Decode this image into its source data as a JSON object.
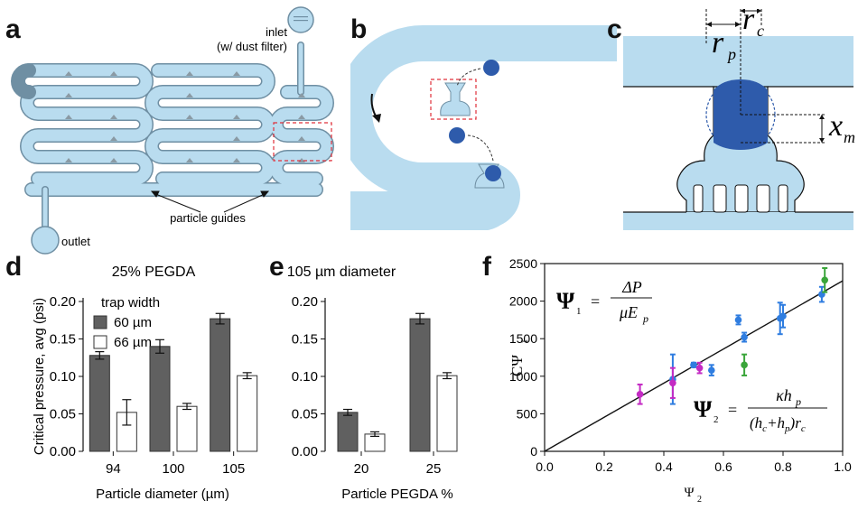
{
  "panels": {
    "a": {
      "label": "a",
      "inlet": "inlet",
      "inlet_note": "(w/ dust filter)",
      "outlet": "outlet",
      "guides": "particle guides"
    },
    "b": {
      "label": "b"
    },
    "c": {
      "label": "c",
      "rp": "r",
      "rp_sub": "p",
      "rc": "r",
      "rc_sub": "c",
      "xm": "x",
      "xm_sub": "m"
    },
    "d": {
      "label": "d"
    },
    "e": {
      "label": "e"
    },
    "f": {
      "label": "f",
      "eq1_lhs": "Ψ",
      "eq1_sub": "1",
      "eq1_num": "ΔP",
      "eq1_den": "μE",
      "eq1_den_sub": "p",
      "eq2_lhs": "Ψ",
      "eq2_sub": "2",
      "eq2_num": "κh",
      "eq2_num_sub": "p",
      "eq2_den": "(h",
      "eq2_den_c": "c",
      "eq2_den_mid": "+h",
      "eq2_den_p": "p",
      "eq2_den_end": ")r",
      "eq2_den_rc": "c",
      "equals": "="
    }
  },
  "colors": {
    "channel": "#b9dcef",
    "channel_stroke": "#6f8fa3",
    "particle": "#2e5bab",
    "bar_dark": "#606060",
    "blue_pts": "#2f7de0",
    "magenta_pts": "#c42bc4",
    "green_pts": "#3aa53a"
  },
  "chart_data": [
    {
      "type": "bar",
      "panel": "d",
      "title": "25% PEGDA",
      "xlabel": "Particle diameter (µm)",
      "ylabel": "Critical pressure, avg (psi)",
      "ylim": [
        0,
        0.2
      ],
      "yticks": [
        "0.00",
        "0.05",
        "0.10",
        "0.15",
        "0.20"
      ],
      "categories": [
        "94",
        "100",
        "105"
      ],
      "legend_title": "trap width",
      "legend": "top-left",
      "series": [
        {
          "name": "60 µm",
          "values": [
            0.128,
            0.14,
            0.177
          ],
          "errors": [
            0.005,
            0.009,
            0.007
          ]
        },
        {
          "name": "66 µm",
          "values": [
            0.052,
            0.06,
            0.101
          ],
          "errors": [
            0.017,
            0.004,
            0.004
          ]
        }
      ]
    },
    {
      "type": "bar",
      "panel": "e",
      "title": "105 µm diameter",
      "xlabel": "Particle PEGDA %",
      "ylabel": "",
      "ylim": [
        0,
        0.2
      ],
      "yticks": [
        "0.00",
        "0.05",
        "0.10",
        "0.15",
        "0.20"
      ],
      "categories": [
        "20",
        "25"
      ],
      "series": [
        {
          "name": "60 µm",
          "values": [
            0.052,
            0.177
          ],
          "errors": [
            0.004,
            0.007
          ]
        },
        {
          "name": "66 µm",
          "values": [
            0.023,
            0.101
          ],
          "errors": [
            0.003,
            0.004
          ]
        }
      ]
    },
    {
      "type": "scatter",
      "panel": "f",
      "xlabel": "Ψ",
      "xlabel_sub": "2",
      "ylabel": "CΨ",
      "ylabel_sub": "1",
      "xlim": [
        0,
        1
      ],
      "ylim": [
        0,
        2500
      ],
      "xticks": [
        "0.0",
        "0.2",
        "0.4",
        "0.6",
        "0.8",
        "1.0"
      ],
      "yticks": [
        "0",
        "500",
        "1000",
        "1500",
        "2000",
        "2500"
      ],
      "fit_line": [
        [
          0,
          0
        ],
        [
          1,
          2270
        ]
      ],
      "series": [
        {
          "color": "#2f7de0",
          "points": [
            [
              0.43,
              960,
              330
            ],
            [
              0.5,
              1150,
              30
            ],
            [
              0.56,
              1080,
              70
            ],
            [
              0.65,
              1750,
              60
            ],
            [
              0.67,
              1520,
              60
            ],
            [
              0.79,
              1770,
              210
            ],
            [
              0.8,
              1800,
              150
            ],
            [
              0.93,
              2090,
              100
            ]
          ]
        },
        {
          "color": "#c42bc4",
          "points": [
            [
              0.32,
              760,
              130
            ],
            [
              0.43,
              910,
              200
            ],
            [
              0.52,
              1110,
              70
            ]
          ]
        },
        {
          "color": "#3aa53a",
          "points": [
            [
              0.67,
              1150,
              140
            ],
            [
              0.94,
              2280,
              160
            ]
          ]
        }
      ]
    }
  ]
}
